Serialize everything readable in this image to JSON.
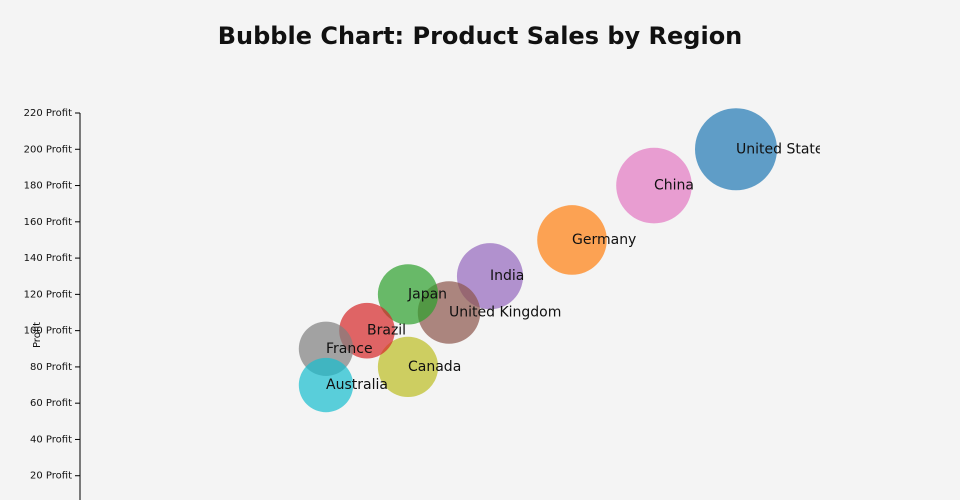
{
  "chart_data": {
    "type": "bubble",
    "title": "Bubble Chart: Product Sales by Region",
    "y_label": "Profit",
    "xlim": [
      10,
      110
    ],
    "ylim": [
      0,
      220
    ],
    "yticks": [
      {
        "value": 20,
        "label": "20 Profit"
      },
      {
        "value": 40,
        "label": "40 Profit"
      },
      {
        "value": 60,
        "label": "60 Profit"
      },
      {
        "value": 80,
        "label": "80 Profit"
      },
      {
        "value": 100,
        "label": "100 Profit"
      },
      {
        "value": 120,
        "label": "120 Profit"
      },
      {
        "value": 140,
        "label": "140 Profit"
      },
      {
        "value": 160,
        "label": "160 Profit"
      },
      {
        "value": 180,
        "label": "180 Profit"
      },
      {
        "value": 200,
        "label": "200 Profit"
      },
      {
        "value": 220,
        "label": "220 Profit"
      }
    ],
    "series": [
      {
        "name": "United States",
        "color": "#1f77b4",
        "x": [
          90
        ],
        "values": [
          200
        ],
        "sizes": [
          100
        ]
      },
      {
        "name": "China",
        "color": "#e377c2",
        "x": [
          80
        ],
        "values": [
          180
        ],
        "sizes": [
          85
        ]
      },
      {
        "name": "Germany",
        "color": "#ff7f0e",
        "x": [
          70
        ],
        "values": [
          150
        ],
        "sizes": [
          72
        ]
      },
      {
        "name": "India",
        "color": "#9467bd",
        "x": [
          60
        ],
        "values": [
          130
        ],
        "sizes": [
          65
        ]
      },
      {
        "name": "United Kingdom",
        "color": "#8c564b",
        "x": [
          55
        ],
        "values": [
          110
        ],
        "sizes": [
          58
        ]
      },
      {
        "name": "Japan",
        "color": "#2ca02c",
        "x": [
          50
        ],
        "values": [
          120
        ],
        "sizes": [
          54
        ]
      },
      {
        "name": "Canada",
        "color": "#bcbd22",
        "x": [
          50
        ],
        "values": [
          80
        ],
        "sizes": [
          54
        ]
      },
      {
        "name": "Brazil",
        "color": "#d62728",
        "x": [
          45
        ],
        "values": [
          100
        ],
        "sizes": [
          46
        ]
      },
      {
        "name": "France",
        "color": "#7f7f7f",
        "x": [
          40
        ],
        "values": [
          90
        ],
        "sizes": [
          44
        ]
      },
      {
        "name": "Australia",
        "color": "#17becf",
        "x": [
          40
        ],
        "values": [
          70
        ],
        "sizes": [
          44
        ]
      }
    ]
  }
}
